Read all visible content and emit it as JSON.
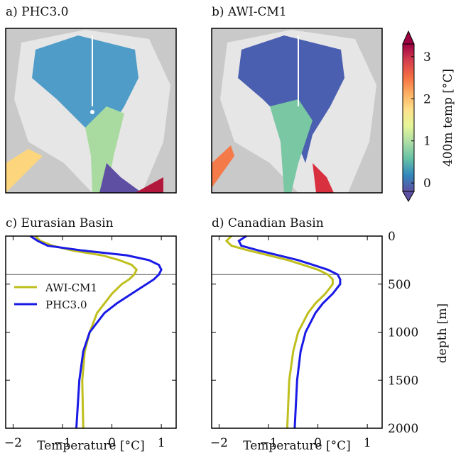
{
  "chart_data": [
    {
      "type": "map",
      "title": "a) PHC3.0"
    },
    {
      "type": "map",
      "title": "b) AWI-CM1"
    },
    {
      "type": "colorbar",
      "label": "400m temp [°C]",
      "ylim": [
        -0.2,
        3.3
      ],
      "yticks": [
        0,
        1,
        2,
        3
      ],
      "colors": [
        "#5e4fa2",
        "#3288bd",
        "#66c2a5",
        "#abdda4",
        "#e6f598",
        "#fee08b",
        "#fdae61",
        "#f46d43",
        "#d53e4f",
        "#9e0142"
      ]
    },
    {
      "type": "line",
      "title": "c) Eurasian Basin",
      "xlabel": "Temperature [°C]",
      "xlim": [
        -2.15,
        1.3
      ],
      "xticks": [
        {
          "value": -2,
          "label": "−2"
        },
        {
          "value": -1,
          "label": "−1"
        },
        0,
        1
      ],
      "ylim": [
        0,
        2000
      ],
      "y_inverted": true,
      "hline": 400,
      "legend": "center left",
      "depth": [
        0,
        50,
        100,
        150,
        200,
        250,
        300,
        350,
        400,
        450,
        500,
        600,
        700,
        800,
        1000,
        1200,
        1500,
        2000
      ],
      "series": [
        {
          "name": "AWI-CM1",
          "color": "#bfbf1e",
          "values": [
            -1.55,
            -1.45,
            -1.2,
            -0.8,
            -0.2,
            0.15,
            0.4,
            0.5,
            0.45,
            0.35,
            0.2,
            0.0,
            -0.15,
            -0.3,
            -0.45,
            -0.55,
            -0.6,
            -0.58
          ]
        },
        {
          "name": "PHC3.0",
          "color": "#1a1ae6",
          "values": [
            -1.65,
            -1.5,
            -1.3,
            -0.6,
            0.3,
            0.75,
            0.95,
            1.0,
            0.95,
            0.85,
            0.7,
            0.4,
            0.1,
            -0.15,
            -0.45,
            -0.58,
            -0.66,
            -0.72
          ]
        }
      ]
    },
    {
      "type": "line",
      "title": "d) Canadian Basin",
      "xlabel": "Temperature [°C]",
      "ylabel": "depth [m]",
      "xlim": [
        -2.15,
        1.3
      ],
      "xticks": [
        {
          "value": -2,
          "label": "−2"
        },
        {
          "value": -1,
          "label": "−1"
        },
        0,
        1
      ],
      "ylim": [
        0,
        2000
      ],
      "y_inverted": true,
      "yticks": [
        0,
        500,
        1000,
        1500,
        2000
      ],
      "hline": 400,
      "depth": [
        0,
        50,
        100,
        150,
        200,
        250,
        300,
        350,
        400,
        450,
        500,
        600,
        700,
        800,
        1000,
        1200,
        1500,
        2000
      ],
      "series": [
        {
          "color": "#bfbf1e",
          "values": [
            -1.75,
            -1.85,
            -1.75,
            -1.4,
            -1.0,
            -0.6,
            -0.3,
            0.0,
            0.2,
            0.3,
            0.3,
            0.15,
            -0.05,
            -0.2,
            -0.4,
            -0.5,
            -0.58,
            -0.62
          ]
        },
        {
          "color": "#1a1ae6",
          "values": [
            -1.45,
            -1.6,
            -1.55,
            -1.2,
            -0.8,
            -0.4,
            -0.1,
            0.2,
            0.4,
            0.45,
            0.45,
            0.3,
            0.1,
            -0.05,
            -0.25,
            -0.35,
            -0.42,
            -0.47
          ]
        }
      ]
    }
  ]
}
